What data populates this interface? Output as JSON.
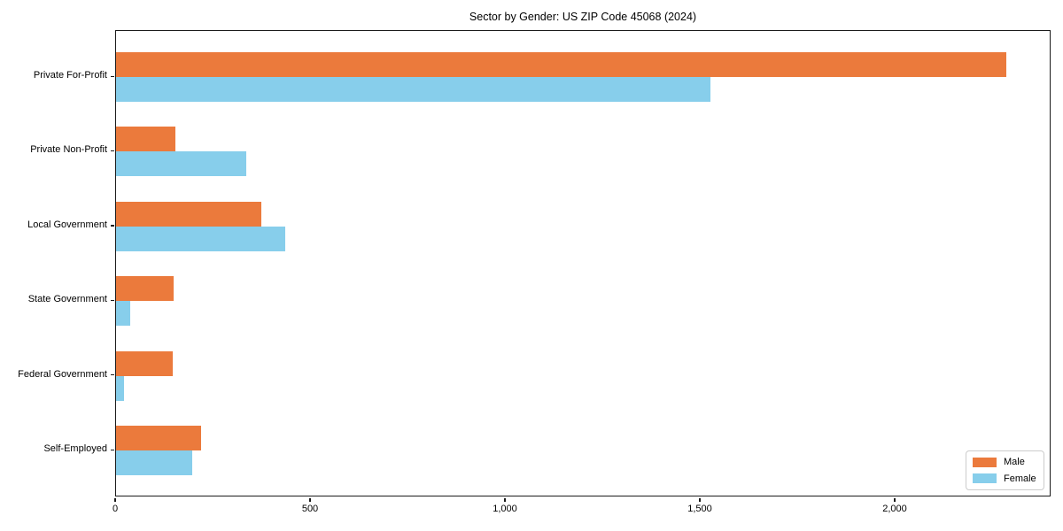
{
  "figure": {
    "background_color": "#ffffff",
    "text_color": "#000000",
    "spine_color": "#1a1a1a"
  },
  "chart_data": {
    "type": "bar",
    "orientation": "horizontal",
    "title": "Sector by Gender: US ZIP Code 45068 (2024)",
    "xlabel": "",
    "ylabel": "",
    "categories": [
      "Private For-Profit",
      "Private Non-Profit",
      "Local Government",
      "State Government",
      "Federal Government",
      "Self-Employed"
    ],
    "series": [
      {
        "name": "Male",
        "color": "#EB7A3C",
        "values": [
          2285,
          153,
          372,
          147,
          145,
          218
        ]
      },
      {
        "name": "Female",
        "color": "#87CEEB",
        "values": [
          1525,
          335,
          435,
          36,
          20,
          195
        ]
      }
    ],
    "xlim": [
      0,
      2400
    ],
    "xticks": [
      0,
      500,
      1000,
      1500,
      2000
    ],
    "xtick_labels": [
      "0",
      "500",
      "1,000",
      "1,500",
      "2,000"
    ],
    "grid": false,
    "legend_position": "lower right"
  }
}
